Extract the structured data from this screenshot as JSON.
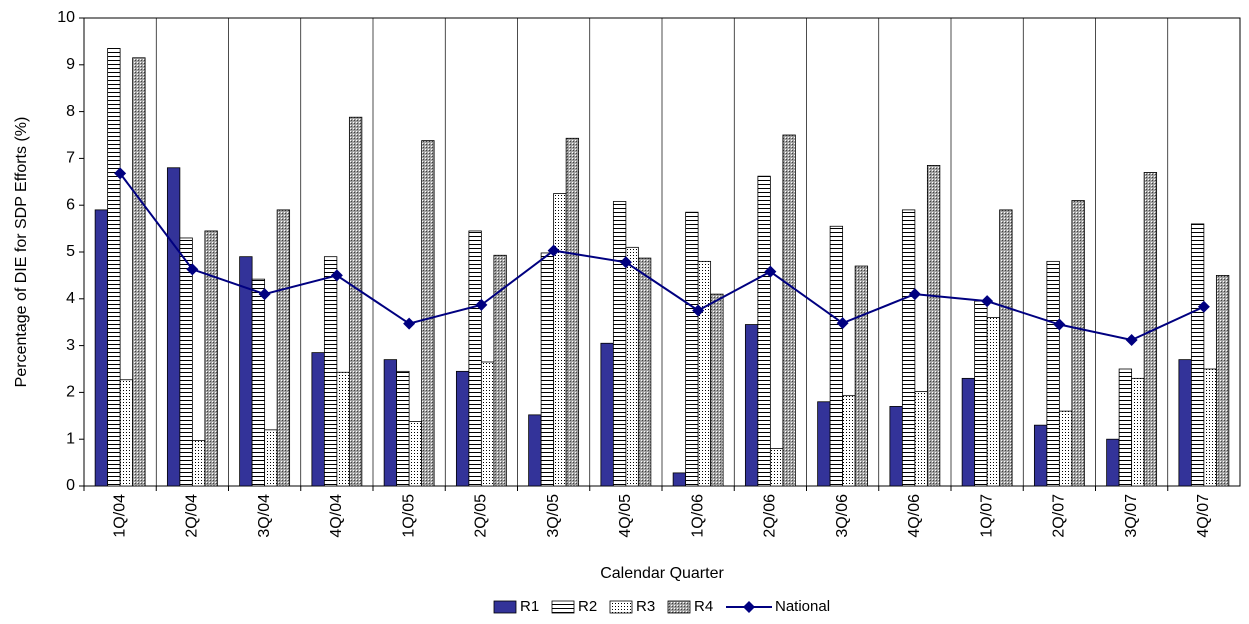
{
  "chart_data": {
    "type": "bar",
    "x_label": "Calendar Quarter",
    "y_label": "Percentage of DIE for SDP Efforts (%)",
    "categories": [
      "1Q/04",
      "2Q/04",
      "3Q/04",
      "4Q/04",
      "1Q/05",
      "2Q/05",
      "3Q/05",
      "4Q/05",
      "1Q/06",
      "2Q/06",
      "3Q/06",
      "4Q/06",
      "1Q/07",
      "2Q/07",
      "3Q/07",
      "4Q/07"
    ],
    "series": [
      {
        "name": "R1",
        "color": "#333399",
        "pattern": "solid",
        "values": [
          5.9,
          6.8,
          4.9,
          2.85,
          2.7,
          2.45,
          1.52,
          3.05,
          0.28,
          3.45,
          1.8,
          1.7,
          2.3,
          1.3,
          1.0,
          2.7
        ]
      },
      {
        "name": "R2",
        "color": "#000000",
        "pattern": "horizontal-lines",
        "values": [
          9.35,
          5.3,
          4.42,
          4.9,
          2.45,
          5.45,
          4.98,
          6.08,
          5.85,
          6.62,
          5.55,
          5.9,
          3.95,
          4.8,
          2.5,
          5.6
        ]
      },
      {
        "name": "R3",
        "color": "#000000",
        "pattern": "dots",
        "values": [
          2.27,
          0.97,
          1.2,
          2.43,
          1.38,
          2.65,
          6.25,
          5.1,
          4.8,
          0.8,
          1.93,
          2.02,
          3.6,
          1.6,
          2.3,
          2.5
        ]
      },
      {
        "name": "R4",
        "color": "#808080",
        "pattern": "crosshatch",
        "values": [
          9.15,
          5.45,
          5.9,
          7.88,
          7.38,
          4.93,
          7.43,
          4.87,
          4.1,
          7.5,
          4.7,
          6.85,
          5.9,
          6.1,
          6.7,
          4.5
        ]
      },
      {
        "name": "National",
        "type": "line",
        "color": "#000080",
        "values": [
          6.68,
          4.63,
          4.1,
          4.5,
          3.47,
          3.87,
          5.03,
          4.78,
          3.75,
          4.58,
          3.48,
          4.1,
          3.95,
          3.45,
          3.12,
          3.83
        ]
      }
    ],
    "ylim": [
      0,
      10
    ],
    "yticks": [
      0,
      1,
      2,
      3,
      4,
      5,
      6,
      7,
      8,
      9,
      10
    ],
    "legend": "bottom"
  }
}
